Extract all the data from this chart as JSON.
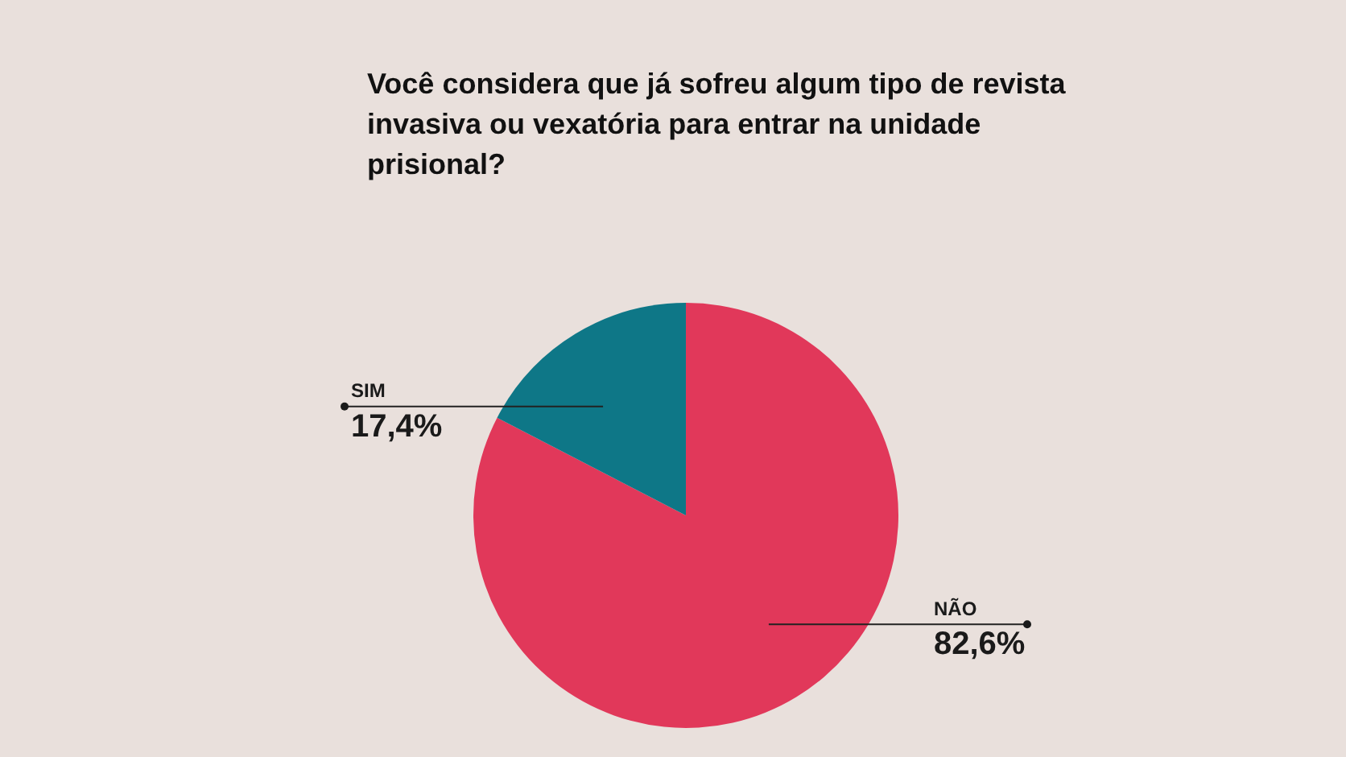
{
  "chart_data": {
    "type": "pie",
    "title": "Você considera que já sofreu algum  tipo de revista invasiva ou vexatória para entrar na unidade prisional?",
    "categories": [
      "NÃO",
      "SIM"
    ],
    "values": [
      82.6,
      17.4
    ],
    "value_labels": [
      "82,6%",
      "17,4%"
    ],
    "colors": [
      "#e1385a",
      "#0e7787"
    ],
    "legend": false
  }
}
